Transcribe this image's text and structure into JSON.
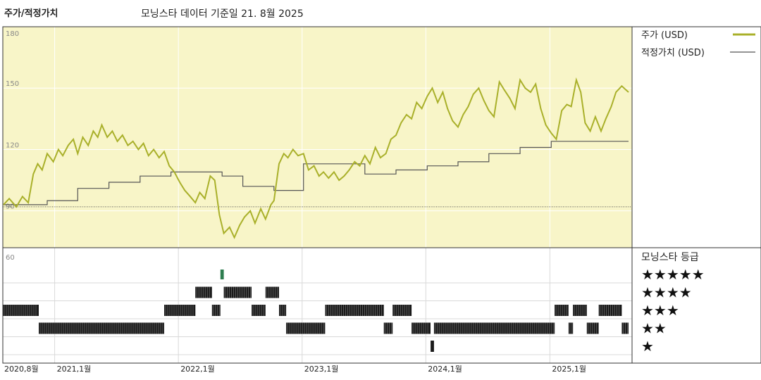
{
  "header": {
    "left_title": "주가/적정가치",
    "source_note": "모닝스타 데이터 기준일 21. 8월 2025"
  },
  "colors": {
    "price_line": "#a9b02a",
    "fair_value_line": "#555555",
    "upper_panel_bg": "#f8f5c8",
    "rating_bar": "#1a1a1a",
    "rating_five_star": "#2e7d4f"
  },
  "chart_data": [
    {
      "type": "line",
      "panel": "price",
      "yticks": [
        90,
        120,
        150,
        180
      ],
      "ylim": [
        72,
        180
      ],
      "xlim": [
        "2020-08-01",
        "2025-08-21"
      ],
      "legend": [
        {
          "label": "주가 (USD)",
          "series": "price"
        },
        {
          "label": "적정가치 (USD)",
          "series": "fair_value"
        }
      ],
      "series": [
        {
          "name": "주가 (USD)",
          "key": "price",
          "points": [
            [
              "2020-08-03",
              93
            ],
            [
              "2020-08-20",
              96
            ],
            [
              "2020-09-10",
              92
            ],
            [
              "2020-09-28",
              97
            ],
            [
              "2020-10-15",
              94
            ],
            [
              "2020-10-30",
              108
            ],
            [
              "2020-11-12",
              113
            ],
            [
              "2020-11-25",
              110
            ],
            [
              "2020-12-10",
              118
            ],
            [
              "2020-12-28",
              114
            ],
            [
              "2021-01-12",
              120
            ],
            [
              "2021-01-25",
              117
            ],
            [
              "2021-02-10",
              122
            ],
            [
              "2021-02-25",
              125
            ],
            [
              "2021-03-10",
              118
            ],
            [
              "2021-03-25",
              126
            ],
            [
              "2021-04-10",
              122
            ],
            [
              "2021-04-25",
              129
            ],
            [
              "2021-05-08",
              126
            ],
            [
              "2021-05-20",
              132
            ],
            [
              "2021-06-05",
              126
            ],
            [
              "2021-06-20",
              129
            ],
            [
              "2021-07-05",
              124
            ],
            [
              "2021-07-20",
              127
            ],
            [
              "2021-08-05",
              122
            ],
            [
              "2021-08-20",
              124
            ],
            [
              "2021-09-05",
              120
            ],
            [
              "2021-09-20",
              123
            ],
            [
              "2021-10-05",
              117
            ],
            [
              "2021-10-20",
              120
            ],
            [
              "2021-11-05",
              116
            ],
            [
              "2021-11-20",
              119
            ],
            [
              "2021-12-05",
              112
            ],
            [
              "2021-12-20",
              109
            ],
            [
              "2022-01-05",
              104
            ],
            [
              "2022-01-20",
              100
            ],
            [
              "2022-02-05",
              97
            ],
            [
              "2022-02-20",
              94
            ],
            [
              "2022-03-05",
              99
            ],
            [
              "2022-03-20",
              96
            ],
            [
              "2022-04-05",
              107
            ],
            [
              "2022-04-18",
              105
            ],
            [
              "2022-05-02",
              88
            ],
            [
              "2022-05-15",
              79
            ],
            [
              "2022-06-01",
              82
            ],
            [
              "2022-06-15",
              77
            ],
            [
              "2022-07-01",
              83
            ],
            [
              "2022-07-15",
              87
            ],
            [
              "2022-08-01",
              90
            ],
            [
              "2022-08-15",
              84
            ],
            [
              "2022-09-01",
              91
            ],
            [
              "2022-09-15",
              86
            ],
            [
              "2022-10-01",
              93
            ],
            [
              "2022-10-10",
              95
            ],
            [
              "2022-10-25",
              113
            ],
            [
              "2022-11-08",
              118
            ],
            [
              "2022-11-20",
              116
            ],
            [
              "2022-12-05",
              120
            ],
            [
              "2022-12-20",
              117
            ],
            [
              "2023-01-05",
              118
            ],
            [
              "2023-01-20",
              110
            ],
            [
              "2023-02-05",
              112
            ],
            [
              "2023-02-20",
              107
            ],
            [
              "2023-03-05",
              109
            ],
            [
              "2023-03-20",
              106
            ],
            [
              "2023-04-05",
              109
            ],
            [
              "2023-04-20",
              105
            ],
            [
              "2023-05-05",
              107
            ],
            [
              "2023-05-20",
              110
            ],
            [
              "2023-06-05",
              114
            ],
            [
              "2023-06-20",
              112
            ],
            [
              "2023-07-05",
              117
            ],
            [
              "2023-07-20",
              113
            ],
            [
              "2023-08-05",
              121
            ],
            [
              "2023-08-20",
              116
            ],
            [
              "2023-09-05",
              118
            ],
            [
              "2023-09-20",
              125
            ],
            [
              "2023-10-05",
              127
            ],
            [
              "2023-10-20",
              133
            ],
            [
              "2023-11-05",
              137
            ],
            [
              "2023-11-20",
              135
            ],
            [
              "2023-12-05",
              143
            ],
            [
              "2023-12-20",
              140
            ],
            [
              "2024-01-05",
              146
            ],
            [
              "2024-01-20",
              150
            ],
            [
              "2024-02-05",
              143
            ],
            [
              "2024-02-20",
              148
            ],
            [
              "2024-03-05",
              140
            ],
            [
              "2024-03-20",
              134
            ],
            [
              "2024-04-05",
              131
            ],
            [
              "2024-04-20",
              137
            ],
            [
              "2024-05-05",
              141
            ],
            [
              "2024-05-20",
              147
            ],
            [
              "2024-06-05",
              150
            ],
            [
              "2024-06-20",
              144
            ],
            [
              "2024-07-05",
              139
            ],
            [
              "2024-07-20",
              136
            ],
            [
              "2024-08-05",
              153
            ],
            [
              "2024-08-20",
              149
            ],
            [
              "2024-09-05",
              145
            ],
            [
              "2024-09-20",
              140
            ],
            [
              "2024-10-05",
              154
            ],
            [
              "2024-10-20",
              150
            ],
            [
              "2024-11-05",
              148
            ],
            [
              "2024-11-20",
              152
            ],
            [
              "2024-12-05",
              140
            ],
            [
              "2024-12-20",
              132
            ],
            [
              "2025-01-05",
              128
            ],
            [
              "2025-01-20",
              125
            ],
            [
              "2025-02-05",
              139
            ],
            [
              "2025-02-20",
              142
            ],
            [
              "2025-03-05",
              141
            ],
            [
              "2025-03-20",
              154
            ],
            [
              "2025-04-02",
              148
            ],
            [
              "2025-04-15",
              133
            ],
            [
              "2025-04-30",
              129
            ],
            [
              "2025-05-15",
              136
            ],
            [
              "2025-06-01",
              129
            ],
            [
              "2025-06-15",
              135
            ],
            [
              "2025-07-01",
              141
            ],
            [
              "2025-07-15",
              148
            ],
            [
              "2025-08-01",
              151
            ],
            [
              "2025-08-21",
              148
            ]
          ]
        },
        {
          "name": "적정가치 (USD)",
          "key": "fair_value",
          "points": [
            [
              "2020-08-03",
              93
            ],
            [
              "2020-12-10",
              95
            ],
            [
              "2021-03-10",
              101
            ],
            [
              "2021-06-10",
              104
            ],
            [
              "2021-09-10",
              107
            ],
            [
              "2021-12-10",
              109
            ],
            [
              "2022-05-10",
              107
            ],
            [
              "2022-07-10",
              102
            ],
            [
              "2022-10-10",
              100
            ],
            [
              "2023-01-05",
              113
            ],
            [
              "2023-07-05",
              108
            ],
            [
              "2023-10-05",
              110
            ],
            [
              "2024-01-05",
              112
            ],
            [
              "2024-04-05",
              114
            ],
            [
              "2024-07-05",
              118
            ],
            [
              "2024-10-05",
              121
            ],
            [
              "2025-01-05",
              124
            ],
            [
              "2025-08-21",
              124
            ]
          ]
        }
      ]
    },
    {
      "type": "bar",
      "panel": "rating",
      "title": "모닝스타 등급",
      "ytick_label": "60",
      "rating_levels": [
        "★★★★★",
        "★★★★",
        "★★★",
        "★★",
        "★"
      ],
      "x_tick_labels": [
        "2020,8월",
        "2021,1월",
        "2022,1월",
        "2023,1월",
        "2024,1월",
        "2025,1월"
      ],
      "x_tick_dates": [
        "2020-08-01",
        "2021-01-01",
        "2022-01-01",
        "2023-01-01",
        "2024-01-01",
        "2025-01-01"
      ],
      "segments": [
        {
          "stars": 3,
          "start": "2020-08-01",
          "end": "2020-11-15"
        },
        {
          "stars": 2,
          "start": "2020-11-15",
          "end": "2021-11-20"
        },
        {
          "stars": 3,
          "start": "2021-11-20",
          "end": "2022-02-20"
        },
        {
          "stars": 4,
          "start": "2022-02-20",
          "end": "2022-04-10"
        },
        {
          "stars": 3,
          "start": "2022-04-10",
          "end": "2022-05-05"
        },
        {
          "stars": 5,
          "start": "2022-05-05",
          "end": "2022-05-15"
        },
        {
          "stars": 4,
          "start": "2022-05-15",
          "end": "2022-08-05"
        },
        {
          "stars": 3,
          "start": "2022-08-05",
          "end": "2022-09-15"
        },
        {
          "stars": 4,
          "start": "2022-09-15",
          "end": "2022-10-25"
        },
        {
          "stars": 3,
          "start": "2022-10-25",
          "end": "2022-11-15"
        },
        {
          "stars": 2,
          "start": "2022-11-15",
          "end": "2023-03-10"
        },
        {
          "stars": 3,
          "start": "2023-03-10",
          "end": "2023-08-30"
        },
        {
          "stars": 2,
          "start": "2023-08-30",
          "end": "2023-09-25"
        },
        {
          "stars": 3,
          "start": "2023-09-25",
          "end": "2023-11-20"
        },
        {
          "stars": 2,
          "start": "2023-11-20",
          "end": "2024-01-15"
        },
        {
          "stars": 1,
          "start": "2024-01-15",
          "end": "2024-01-25"
        },
        {
          "stars": 2,
          "start": "2024-01-25",
          "end": "2025-01-15"
        },
        {
          "stars": 3,
          "start": "2025-01-15",
          "end": "2025-02-25"
        },
        {
          "stars": 2,
          "start": "2025-02-25",
          "end": "2025-03-10"
        },
        {
          "stars": 3,
          "start": "2025-03-10",
          "end": "2025-04-20"
        },
        {
          "stars": 2,
          "start": "2025-04-20",
          "end": "2025-05-25"
        },
        {
          "stars": 3,
          "start": "2025-05-25",
          "end": "2025-08-01"
        },
        {
          "stars": 2,
          "start": "2025-08-01",
          "end": "2025-08-21"
        }
      ]
    }
  ]
}
